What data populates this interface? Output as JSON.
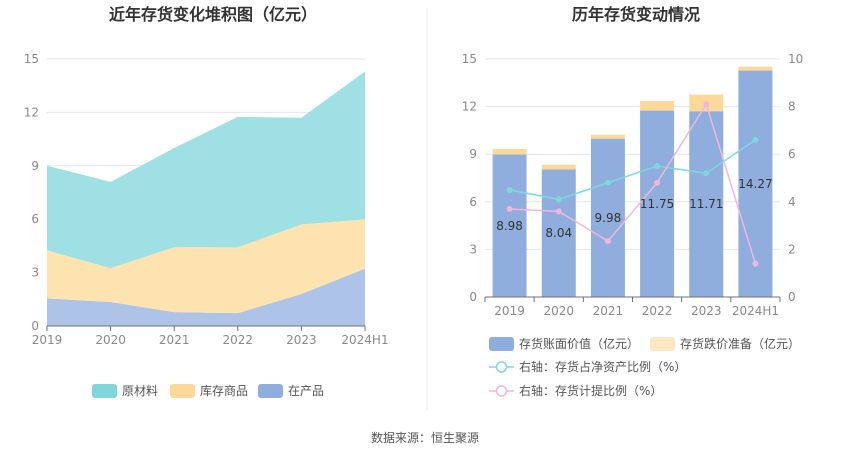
{
  "footer": {
    "source": "数据来源：恒生聚源"
  },
  "colors": {
    "raw": "#9ee0e3",
    "finished": "#fde3b0",
    "wip": "#adc4e8",
    "bar_main": "#8faedd",
    "bar_top": "#fcd999",
    "line_ratio": "#7dd8dc",
    "line_provision": "#f0b7dd"
  },
  "chart_data": [
    {
      "type": "area",
      "title": "近年存货变化堆积图（亿元）",
      "categories": [
        "2019",
        "2020",
        "2021",
        "2022",
        "2023",
        "2024H1"
      ],
      "y_ticks": [
        "0",
        "3",
        "6",
        "9",
        "12",
        "15"
      ],
      "ylim": [
        0,
        15
      ],
      "stacked": true,
      "series": [
        {
          "name": "在产品",
          "values": [
            1.55,
            1.35,
            0.78,
            0.72,
            1.8,
            3.22
          ]
        },
        {
          "name": "库存商品",
          "values": [
            2.7,
            1.9,
            3.65,
            3.7,
            3.9,
            2.78
          ]
        },
        {
          "name": "原材料",
          "values": [
            4.75,
            4.85,
            5.57,
            7.33,
            6.0,
            8.3
          ]
        }
      ],
      "legend": [
        {
          "name": "原材料",
          "color_key": "raw"
        },
        {
          "name": "库存商品",
          "color_key": "finished"
        },
        {
          "name": "在产品",
          "color_key": "wip"
        }
      ],
      "legend_position": "bottom"
    },
    {
      "type": "bar+line",
      "title": "历年存货变动情况",
      "categories": [
        "2019",
        "2020",
        "2021",
        "2022",
        "2023",
        "2024H1"
      ],
      "y_ticks_left": [
        "0",
        "3",
        "6",
        "9",
        "12",
        "15"
      ],
      "y_ticks_right": [
        "0",
        "2",
        "4",
        "6",
        "8",
        "10"
      ],
      "ylim_left": [
        0,
        15
      ],
      "ylim_right": [
        0,
        10
      ],
      "bar_series": [
        {
          "name": "存货账面价值（亿元）",
          "values": [
            8.98,
            8.04,
            9.98,
            11.75,
            11.71,
            14.27
          ],
          "labels": [
            "8.98",
            "8.04",
            "9.98",
            "11.75",
            "11.71",
            "14.27"
          ]
        },
        {
          "name": "存货跌价准备（亿元）",
          "values": [
            0.35,
            0.3,
            0.25,
            0.6,
            1.05,
            0.25
          ]
        }
      ],
      "line_series": [
        {
          "name": "右轴：存货占净资产比例（%）",
          "values": [
            4.5,
            4.1,
            4.8,
            5.5,
            5.2,
            6.6
          ]
        },
        {
          "name": "右轴：存货计提比例（%）",
          "values": [
            3.7,
            3.6,
            2.35,
            4.8,
            8.1,
            1.4
          ]
        }
      ],
      "legend_position": "bottom"
    }
  ]
}
